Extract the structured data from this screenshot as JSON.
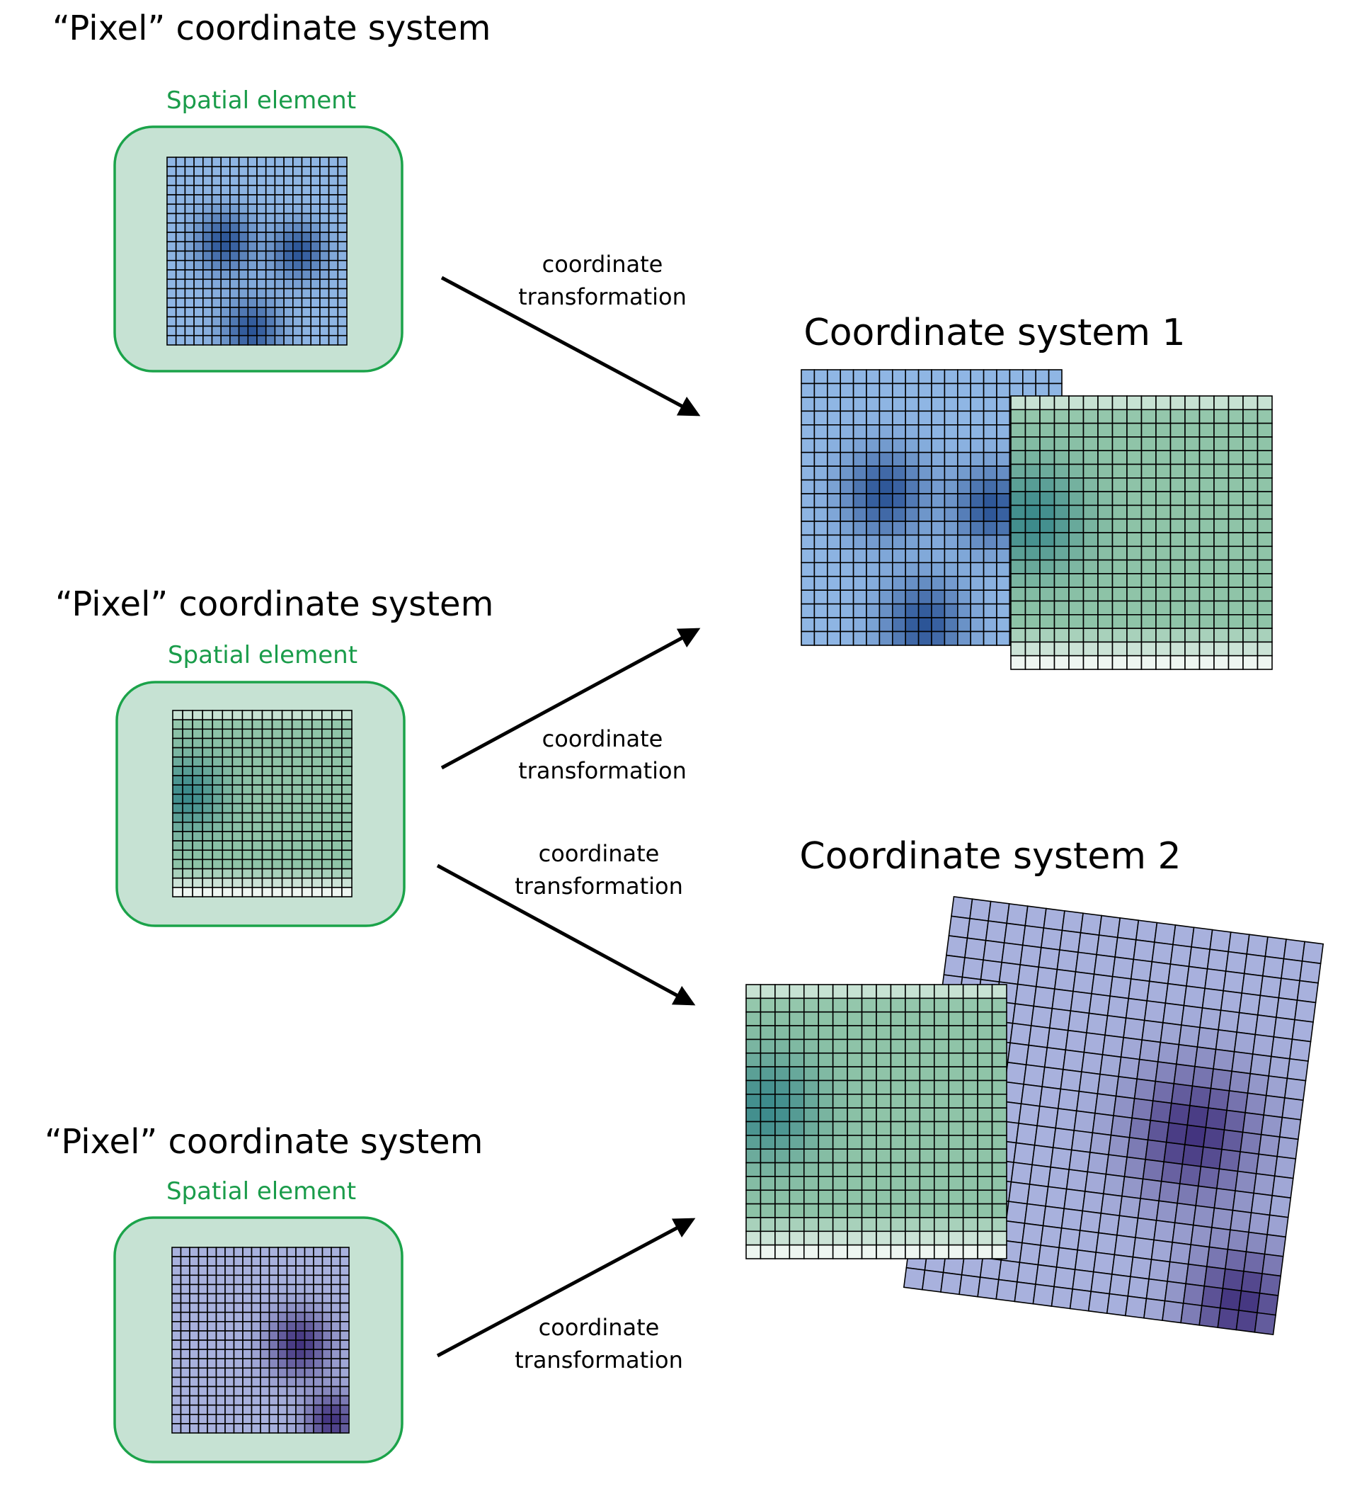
{
  "panels": [
    {
      "title": "“Pixel” coordinate system",
      "label": "Spatial element"
    },
    {
      "title": "“Pixel” coordinate system",
      "label": "Spatial element"
    },
    {
      "title": "“Pixel” coordinate system",
      "label": "Spatial element"
    }
  ],
  "arrows": [
    {
      "lines": [
        "coordinate",
        "transformation"
      ]
    },
    {
      "lines": [
        "coordinate",
        "transformation"
      ]
    },
    {
      "lines": [
        "coordinate",
        "transformation"
      ]
    },
    {
      "lines": [
        "coordinate",
        "transformation"
      ]
    }
  ],
  "targets": [
    {
      "title": "Coordinate system 1"
    },
    {
      "title": "Coordinate system 2"
    }
  ]
}
